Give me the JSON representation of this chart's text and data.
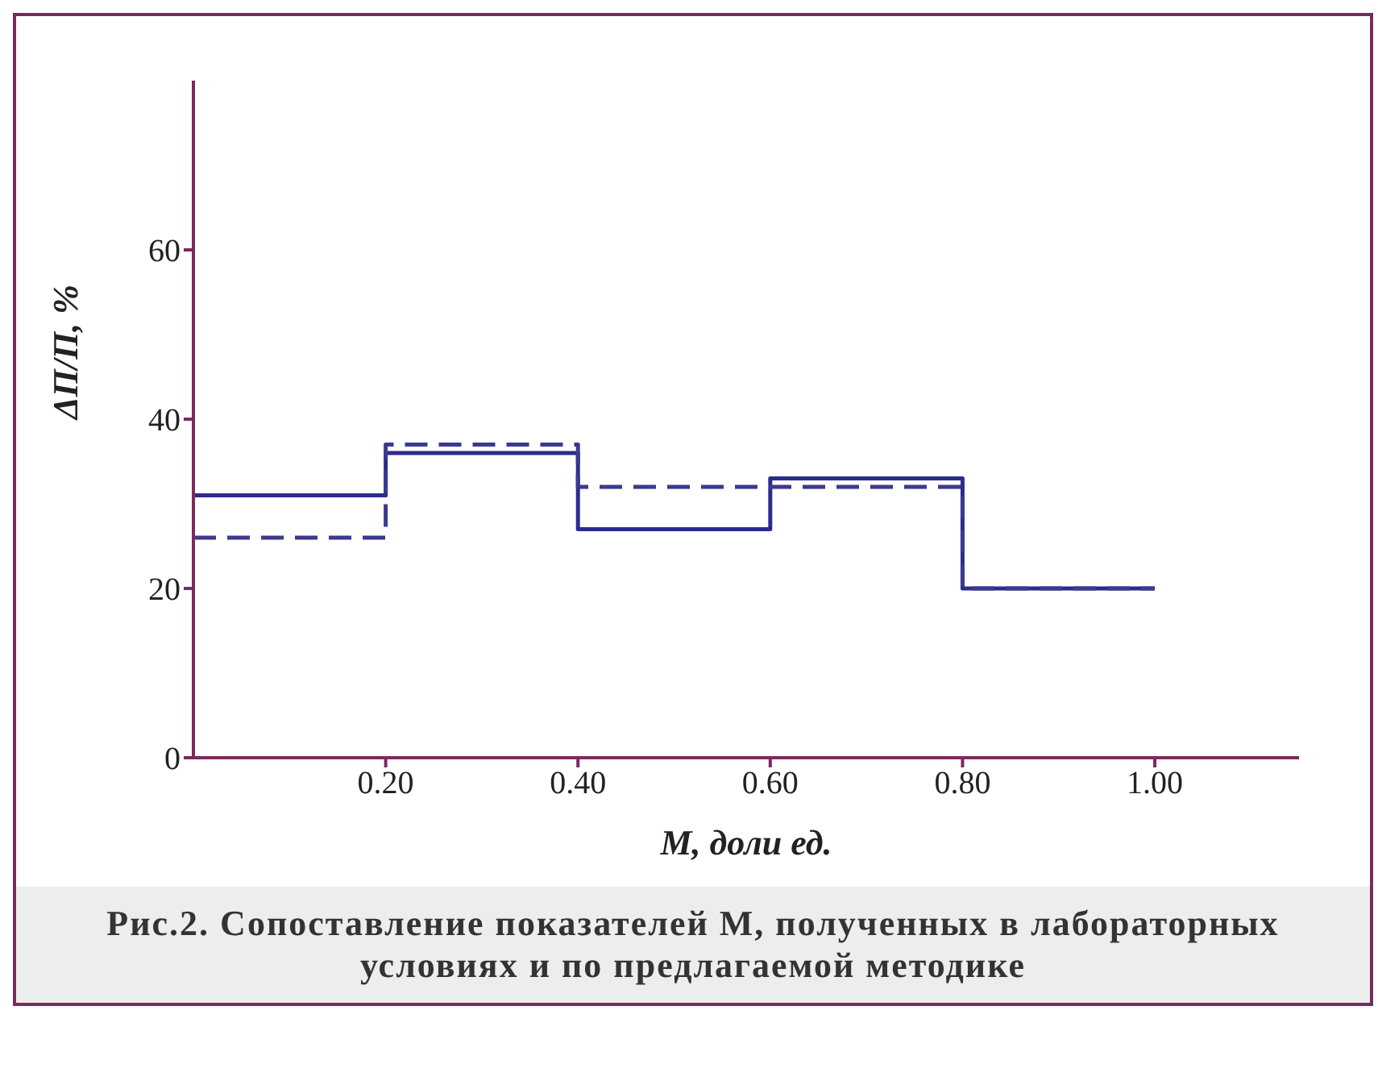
{
  "chart_data": {
    "type": "step",
    "xlabel": "M, доли ед.",
    "ylabel": "ΔП/П, %",
    "x": [
      0,
      0.2,
      0.4,
      0.6,
      0.8,
      1.0
    ],
    "series": [
      {
        "color": "#2b2b8f",
        "line_style": "solid",
        "values": [
          31,
          36,
          27,
          33,
          20,
          20
        ]
      },
      {
        "color": "#3a3a8f",
        "line_style": "dashed",
        "values": [
          26,
          37,
          32,
          32,
          20,
          20
        ]
      }
    ],
    "xlim": [
      0,
      1.15
    ],
    "xticks": [
      {
        "value": 0.2,
        "label": "0.20"
      },
      {
        "value": 0.4,
        "label": "0.40"
      },
      {
        "value": 0.6,
        "label": "0.60"
      },
      {
        "value": 0.8,
        "label": "0.80"
      },
      {
        "value": 1.0,
        "label": "1.00"
      }
    ],
    "ylim": [
      0,
      80
    ],
    "yticks": [
      0,
      20,
      40,
      60
    ],
    "grid": false,
    "legend": false,
    "marker": "none",
    "annotations": [
      "Рис.2. Сопоставление показателей M, полученных в лабораторных условиях и по предлагаемой методике"
    ]
  }
}
